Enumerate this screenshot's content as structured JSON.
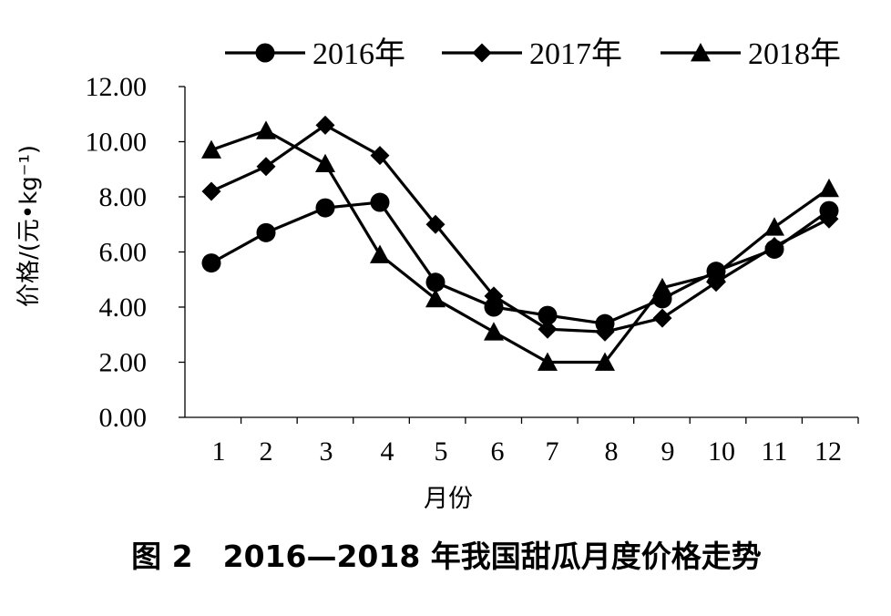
{
  "chart_data": {
    "type": "line",
    "caption": "图 2　2016—2018 年我国甜瓜月度价格走势",
    "ylabel": "价格/(元•kg⁻¹)",
    "xlabel": "月份",
    "categories": [
      "1",
      "2",
      "3",
      "4",
      "5",
      "6",
      "7",
      "8",
      "9",
      "10",
      "11",
      "12"
    ],
    "ylim": [
      0,
      12
    ],
    "yticks": [
      "0.00",
      "2.00",
      "4.00",
      "6.00",
      "8.00",
      "10.00",
      "12.00"
    ],
    "legend_position": "top",
    "grid": false,
    "series": [
      {
        "name": "2016年",
        "marker": "circle",
        "values": [
          5.6,
          6.7,
          7.6,
          7.8,
          4.9,
          4.0,
          3.7,
          3.4,
          4.3,
          5.3,
          6.1,
          7.5
        ]
      },
      {
        "name": "2017年",
        "marker": "diamond",
        "values": [
          8.2,
          9.1,
          10.6,
          9.5,
          7.0,
          4.4,
          3.2,
          3.1,
          3.6,
          4.9,
          6.2,
          7.2
        ]
      },
      {
        "name": "2018年",
        "marker": "triangle",
        "values": [
          9.7,
          10.4,
          9.2,
          5.9,
          4.3,
          3.1,
          2.0,
          2.0,
          4.7,
          5.2,
          6.9,
          8.3
        ]
      }
    ]
  }
}
